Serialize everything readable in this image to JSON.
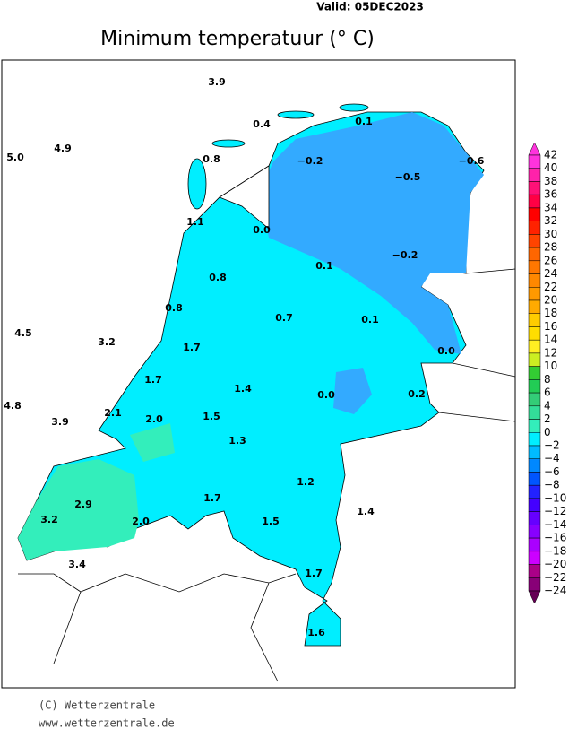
{
  "valid": "Valid:  05DEC2023",
  "title": "Minimum  temperatuur  (° C)",
  "stations": [
    "3.9",
    "0.4",
    "0.1",
    "4.9",
    "5.0",
    "0.8",
    "−0.2",
    "−0.5",
    "−0.6",
    "1.1",
    "0.0",
    "−0.2",
    "0.1",
    "0.8",
    "0.8",
    "0.7",
    "0.1",
    "4.5",
    "3.2",
    "1.7",
    "0.0",
    "1.7",
    "1.4",
    "0.0",
    "0.2",
    "4.8",
    "2.1",
    "2.0",
    "1.5",
    "3.9",
    "1.3",
    "1.2",
    "2.9",
    "1.7",
    "3.2",
    "2.0",
    "1.4",
    "1.5",
    "3.4",
    "1.7",
    "1.6"
  ],
  "colorbar": [
    {
      "label": "42",
      "color": "#ff33dd"
    },
    {
      "label": "40",
      "color": "#ff22aa"
    },
    {
      "label": "38",
      "color": "#ff1177"
    },
    {
      "label": "36",
      "color": "#ff0044"
    },
    {
      "label": "34",
      "color": "#ff0000"
    },
    {
      "label": "32",
      "color": "#ff2200"
    },
    {
      "label": "30",
      "color": "#ff4400"
    },
    {
      "label": "28",
      "color": "#ff6600"
    },
    {
      "label": "26",
      "color": "#ff7700"
    },
    {
      "label": "24",
      "color": "#ff8800"
    },
    {
      "label": "22",
      "color": "#ff9900"
    },
    {
      "label": "20",
      "color": "#ffaa00"
    },
    {
      "label": "18",
      "color": "#ffcc00"
    },
    {
      "label": "16",
      "color": "#ffdd00"
    },
    {
      "label": "14",
      "color": "#ffee22"
    },
    {
      "label": "12",
      "color": "#ccee22"
    },
    {
      "label": "10",
      "color": "#33cc33"
    },
    {
      "label": "8",
      "color": "#22cc55"
    },
    {
      "label": "6",
      "color": "#33cc77"
    },
    {
      "label": "4",
      "color": "#33dd99"
    },
    {
      "label": "2",
      "color": "#33eebb"
    },
    {
      "label": "0",
      "color": "#00eeff"
    },
    {
      "label": "−2",
      "color": "#00bbff"
    },
    {
      "label": "−4",
      "color": "#0088ff"
    },
    {
      "label": "−6",
      "color": "#0055ff"
    },
    {
      "label": "−8",
      "color": "#2222ff"
    },
    {
      "label": "−10",
      "color": "#4400ff"
    },
    {
      "label": "−12",
      "color": "#6600ff"
    },
    {
      "label": "−14",
      "color": "#8800ff"
    },
    {
      "label": "−16",
      "color": "#aa00ff"
    },
    {
      "label": "−18",
      "color": "#cc00ff"
    },
    {
      "label": "−20",
      "color": "#aa0088"
    },
    {
      "label": "−22",
      "color": "#880077"
    },
    {
      "label": "−24",
      "color": "#660055"
    }
  ],
  "footer": [
    "(C) Wetterzentrale",
    "www.wetterzentrale.de"
  ]
}
